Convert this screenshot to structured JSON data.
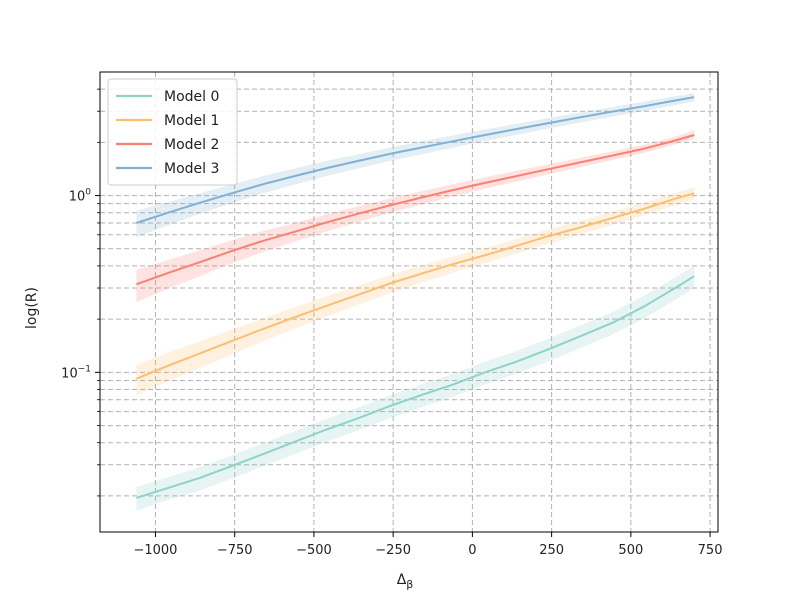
{
  "chart_data": {
    "type": "line",
    "title": "",
    "xlabel": "Δ",
    "xlabel_subscript": "β",
    "ylabel": "log(R)",
    "xlim": [
      -1175,
      775
    ],
    "ylim": [
      0.0125,
      5.0
    ],
    "yscale": "log",
    "grid": true,
    "legend_position": "top-left",
    "x_ticks": [
      -1000,
      -750,
      -500,
      -250,
      0,
      250,
      500,
      750
    ],
    "x_tick_labels": [
      "−1000",
      "−750",
      "−500",
      "−250",
      "0",
      "250",
      "500",
      "750"
    ],
    "y_major_ticks": [
      0.1,
      1
    ],
    "y_tick_labels": [
      {
        "base": "10",
        "exp": "−1"
      },
      {
        "base": "10",
        "exp": "0"
      }
    ],
    "y_minor_ticks": [
      0.02,
      0.03,
      0.04,
      0.05,
      0.06,
      0.07,
      0.08,
      0.09,
      0.2,
      0.3,
      0.4,
      0.5,
      0.6,
      0.7,
      0.8,
      0.9,
      2,
      3,
      4
    ],
    "x": [
      -1060,
      -960,
      -860,
      -760,
      -660,
      -560,
      -460,
      -360,
      -260,
      -160,
      -60,
      40,
      140,
      240,
      340,
      440,
      540,
      640,
      700
    ],
    "series": [
      {
        "name": "Model 0",
        "color": "#8dd3c7",
        "values": [
          0.0195,
          0.0222,
          0.0253,
          0.0295,
          0.0345,
          0.0405,
          0.0475,
          0.055,
          0.0645,
          0.0745,
          0.0855,
          0.1,
          0.115,
          0.135,
          0.16,
          0.19,
          0.235,
          0.3,
          0.35
        ],
        "lower": [
          0.0165,
          0.019,
          0.0215,
          0.025,
          0.0295,
          0.0345,
          0.0405,
          0.047,
          0.055,
          0.0635,
          0.073,
          0.0855,
          0.0985,
          0.1155,
          0.137,
          0.163,
          0.201,
          0.257,
          0.299
        ],
        "upper": [
          0.0225,
          0.0255,
          0.0291,
          0.0339,
          0.0397,
          0.0466,
          0.0546,
          0.0633,
          0.0742,
          0.0857,
          0.0983,
          0.115,
          0.132,
          0.155,
          0.184,
          0.218,
          0.27,
          0.345,
          0.4
        ]
      },
      {
        "name": "Model 1",
        "color": "#fdbf6f",
        "values": [
          0.092,
          0.109,
          0.128,
          0.15,
          0.176,
          0.205,
          0.238,
          0.275,
          0.318,
          0.362,
          0.41,
          0.46,
          0.52,
          0.59,
          0.66,
          0.745,
          0.84,
          0.96,
          1.03
        ],
        "lower": [
          0.074,
          0.089,
          0.106,
          0.126,
          0.15,
          0.177,
          0.207,
          0.241,
          0.281,
          0.322,
          0.367,
          0.414,
          0.47,
          0.535,
          0.601,
          0.681,
          0.77,
          0.883,
          0.95
        ],
        "upper": [
          0.11,
          0.129,
          0.15,
          0.174,
          0.202,
          0.233,
          0.269,
          0.309,
          0.355,
          0.402,
          0.453,
          0.506,
          0.57,
          0.645,
          0.719,
          0.809,
          0.91,
          1.037,
          1.11
        ]
      },
      {
        "name": "Model 2",
        "color": "#fb8072",
        "values": [
          0.315,
          0.365,
          0.42,
          0.485,
          0.555,
          0.625,
          0.705,
          0.79,
          0.88,
          0.975,
          1.075,
          1.18,
          1.29,
          1.41,
          1.54,
          1.68,
          1.84,
          2.05,
          2.2
        ],
        "lower": [
          0.25,
          0.298,
          0.35,
          0.412,
          0.48,
          0.55,
          0.627,
          0.71,
          0.798,
          0.89,
          0.989,
          1.092,
          1.2,
          1.318,
          1.446,
          1.583,
          1.74,
          1.95,
          2.1
        ],
        "upper": [
          0.38,
          0.432,
          0.49,
          0.558,
          0.63,
          0.7,
          0.783,
          0.87,
          0.962,
          1.06,
          1.161,
          1.268,
          1.38,
          1.502,
          1.634,
          1.777,
          1.94,
          2.15,
          2.35
        ]
      },
      {
        "name": "Model 3",
        "color": "#80b1d3",
        "values": [
          0.7,
          0.8,
          0.91,
          1.03,
          1.16,
          1.29,
          1.43,
          1.57,
          1.72,
          1.87,
          2.03,
          2.2,
          2.38,
          2.57,
          2.77,
          2.98,
          3.2,
          3.45,
          3.6
        ],
        "lower": [
          0.58,
          0.68,
          0.79,
          0.905,
          1.03,
          1.155,
          1.29,
          1.425,
          1.57,
          1.715,
          1.87,
          2.035,
          2.21,
          2.395,
          2.59,
          2.795,
          3.01,
          3.25,
          3.4
        ],
        "upper": [
          0.82,
          0.92,
          1.03,
          1.155,
          1.29,
          1.425,
          1.57,
          1.715,
          1.87,
          2.025,
          2.19,
          2.365,
          2.55,
          2.745,
          2.95,
          3.165,
          3.39,
          3.65,
          3.8
        ]
      }
    ]
  }
}
